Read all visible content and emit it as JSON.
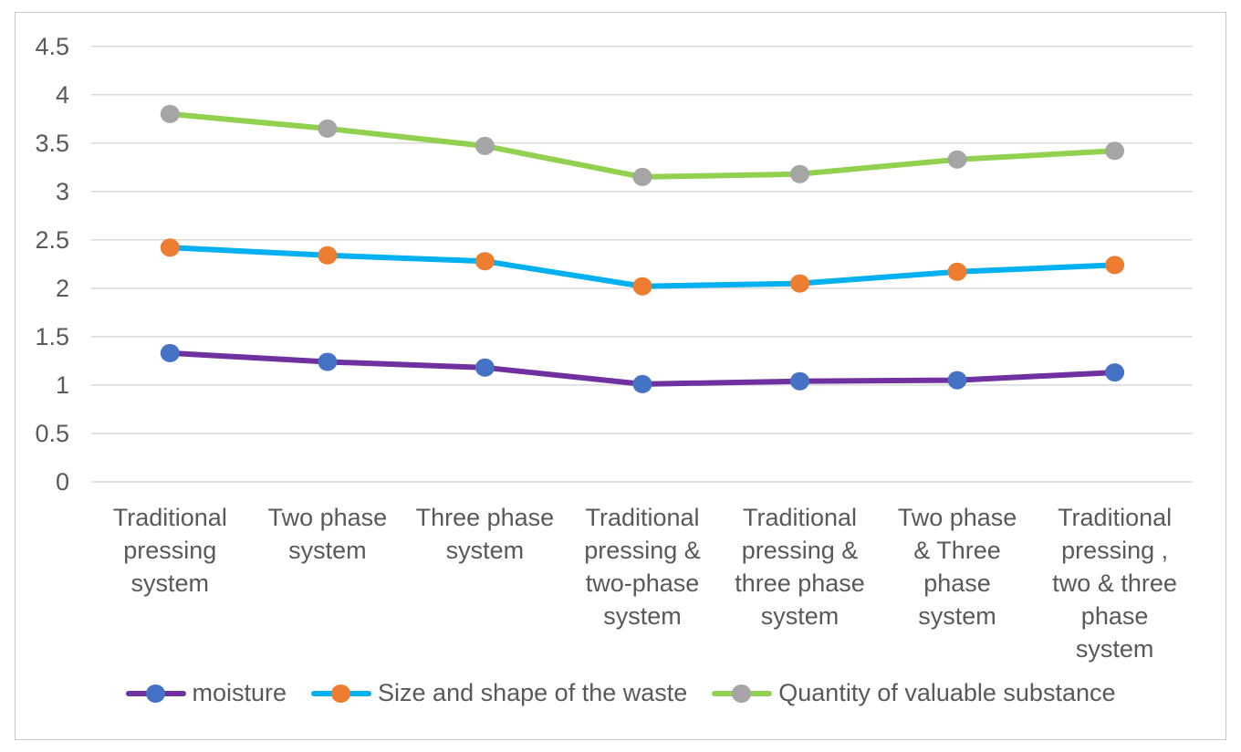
{
  "chart_data": {
    "type": "line",
    "title": "",
    "xlabel": "",
    "ylabel": "",
    "ylim": [
      0,
      4.5
    ],
    "ytick_step": 0.5,
    "yticks": [
      "0",
      "0.5",
      "1",
      "1.5",
      "2",
      "2.5",
      "3",
      "3.5",
      "4",
      "4.5"
    ],
    "grid": true,
    "legend_position": "bottom",
    "categories": [
      "Traditional\npressing\nsystem",
      "Two phase\nsystem",
      "Three phase\nsystem",
      "Traditional\npressing &\ntwo-phase\nsystem",
      "Traditional\npressing &\nthree phase\nsystem",
      "Two phase\n& Three\nphase\nsystem",
      "Traditional\npressing ,\ntwo & three\nphase\nsystem"
    ],
    "series": [
      {
        "name": "moisture",
        "line_color": "#7030A0",
        "marker_color": "#4472C4",
        "values": [
          1.33,
          1.24,
          1.18,
          1.01,
          1.04,
          1.05,
          1.13
        ]
      },
      {
        "name": "Size and shape of the waste",
        "line_color": "#00B0F0",
        "marker_color": "#ED7D31",
        "values": [
          2.42,
          2.34,
          2.28,
          2.02,
          2.05,
          2.17,
          2.24
        ]
      },
      {
        "name": "Quantity of valuable substance",
        "line_color": "#92D050",
        "marker_color": "#A5A5A5",
        "values": [
          3.8,
          3.65,
          3.47,
          3.15,
          3.18,
          3.33,
          3.42
        ]
      }
    ],
    "colors": {
      "background": "#FFFFFF",
      "gridline": "#D9D9D9",
      "axis_text": "#595959",
      "chart_border": "#C8C8C8"
    }
  }
}
